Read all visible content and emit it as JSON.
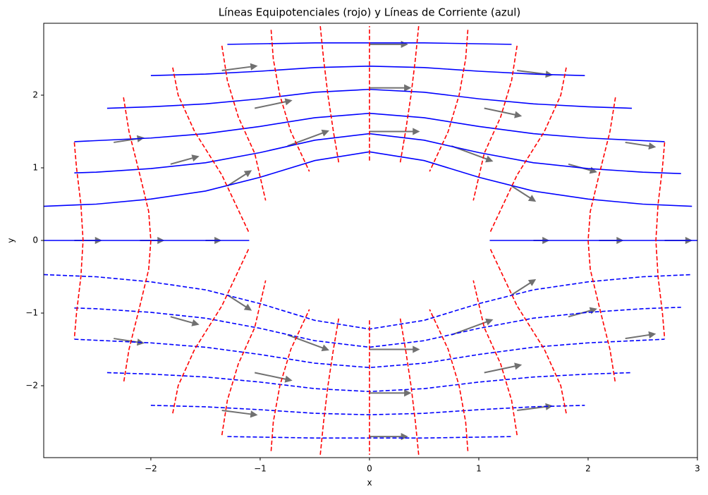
{
  "chart_data": {
    "type": "flow",
    "title": "Líneas Equipotenciales (rojo) y Líneas de Corriente (azul)",
    "x_label": "x",
    "y_label": "y",
    "xlim": [
      -2.98,
      3
    ],
    "ylim": [
      -2.99,
      2.99
    ],
    "xticks": [
      {
        "value": -2,
        "label": "−2"
      },
      {
        "value": -1,
        "label": "−1"
      },
      0,
      1,
      2,
      3
    ],
    "yticks": [
      {
        "value": -2,
        "label": "−2"
      },
      {
        "value": -1,
        "label": "−1"
      },
      0,
      1,
      2
    ],
    "quiver": {
      "color": "#4d4d4d",
      "x": [
        1.5,
        1.3,
        0.75,
        0,
        -0.75,
        -1.3,
        -1.5,
        -1.3,
        -0.75,
        0,
        0.75,
        1.3,
        2.1,
        1.82,
        1.05,
        0,
        -1.05,
        -1.82,
        -2.1,
        -1.82,
        -1.05,
        0,
        1.05,
        1.82,
        2.7,
        2.34,
        1.35,
        0,
        -1.35,
        -2.34,
        -2.7,
        -2.34,
        -1.35,
        0,
        1.35,
        2.34
      ],
      "y": [
        0,
        0.75,
        1.3,
        1.5,
        1.3,
        0.75,
        0,
        -0.75,
        -1.3,
        -1.5,
        -1.3,
        -0.75,
        0,
        1.05,
        1.82,
        2.1,
        1.82,
        1.05,
        0,
        -1.05,
        -1.82,
        -2.1,
        -1.82,
        -1.05,
        0,
        1.35,
        2.34,
        2.7,
        2.34,
        1.35,
        0,
        -1.35,
        -2.34,
        -2.7,
        -2.34,
        -1.35
      ],
      "u": [
        0.46,
        0.73,
        1.27,
        1.54,
        1.27,
        0.73,
        0.46,
        0.73,
        1.27,
        1.54,
        1.27,
        0.73,
        0.73,
        0.86,
        1.14,
        1.27,
        1.14,
        0.86,
        0.73,
        0.86,
        1.14,
        1.27,
        1.14,
        0.86,
        0.83,
        0.92,
        1.08,
        1.17,
        1.08,
        0.92,
        0.83,
        0.92,
        1.08,
        1.17,
        1.08,
        0.92
      ],
      "v": [
        0,
        -0.47,
        -0.47,
        0,
        0.47,
        0.47,
        0,
        -0.47,
        -0.47,
        0,
        0.47,
        0.47,
        0,
        -0.24,
        -0.24,
        0,
        0.24,
        0.24,
        0,
        -0.24,
        -0.24,
        0,
        0.24,
        0.24,
        0,
        -0.14,
        -0.14,
        0,
        0.14,
        0.14,
        0,
        -0.14,
        -0.14,
        0,
        0.14,
        0.14
      ]
    },
    "series": [
      {
        "color": "#0000ff",
        "dash": false,
        "x": [
          -2.98,
          -1.1
        ],
        "y": [
          0,
          0
        ]
      },
      {
        "color": "#0000ff",
        "dash": false,
        "x": [
          1.1,
          3
        ],
        "y": [
          0,
          0
        ]
      },
      {
        "color": "#0000ff",
        "dash": false,
        "x": [
          -2.98,
          -2.5,
          -2,
          -1.5,
          -1,
          -0.5,
          0,
          0.5,
          1,
          1.5,
          2,
          2.5,
          2.95
        ],
        "y": [
          0.47,
          0.5,
          0.57,
          0.68,
          0.87,
          1.1,
          1.22,
          1.1,
          0.87,
          0.68,
          0.57,
          0.5,
          0.47
        ]
      },
      {
        "color": "#0000ff",
        "dash": false,
        "x": [
          -2.7,
          -2.5,
          -2,
          -1.5,
          -1,
          -0.5,
          0,
          0.5,
          1,
          1.5,
          2,
          2.5,
          2.85
        ],
        "y": [
          0.93,
          0.94,
          0.99,
          1.07,
          1.21,
          1.38,
          1.47,
          1.38,
          1.21,
          1.07,
          0.99,
          0.94,
          0.92
        ]
      },
      {
        "color": "#0000ff",
        "dash": false,
        "x": [
          -2.7,
          -2,
          -1.5,
          -1,
          -0.5,
          0,
          0.5,
          1,
          1.5,
          2,
          2.7
        ],
        "y": [
          1.36,
          1.41,
          1.47,
          1.57,
          1.69,
          1.75,
          1.69,
          1.57,
          1.47,
          1.41,
          1.36
        ]
      },
      {
        "color": "#0000ff",
        "dash": false,
        "x": [
          -2.4,
          -2,
          -1.5,
          -1,
          -0.5,
          0,
          0.5,
          1,
          1.5,
          2,
          2.4
        ],
        "y": [
          1.82,
          1.84,
          1.88,
          1.95,
          2.04,
          2.08,
          2.04,
          1.95,
          1.88,
          1.84,
          1.82
        ]
      },
      {
        "color": "#0000ff",
        "dash": false,
        "x": [
          -2,
          -1.5,
          -1,
          -0.5,
          0,
          0.5,
          1,
          1.5,
          1.97
        ],
        "y": [
          2.27,
          2.29,
          2.33,
          2.38,
          2.4,
          2.38,
          2.33,
          2.29,
          2.27
        ]
      },
      {
        "color": "#0000ff",
        "dash": false,
        "x": [
          -1.3,
          -0.5,
          0,
          0.5,
          1.3
        ],
        "y": [
          2.7,
          2.72,
          2.72,
          2.72,
          2.7
        ]
      },
      {
        "color": "#0000ff",
        "dash": true,
        "x": [
          -2.98,
          -2.5,
          -2,
          -1.5,
          -1,
          -0.5,
          0,
          0.5,
          1,
          1.5,
          2,
          2.5,
          2.95
        ],
        "y": [
          -0.47,
          -0.5,
          -0.57,
          -0.68,
          -0.87,
          -1.1,
          -1.22,
          -1.1,
          -0.87,
          -0.68,
          -0.57,
          -0.5,
          -0.47
        ]
      },
      {
        "color": "#0000ff",
        "dash": true,
        "x": [
          -2.7,
          -2.5,
          -2,
          -1.5,
          -1,
          -0.5,
          0,
          0.5,
          1,
          1.5,
          2,
          2.5,
          2.85
        ],
        "y": [
          -0.93,
          -0.94,
          -0.99,
          -1.07,
          -1.21,
          -1.38,
          -1.47,
          -1.38,
          -1.21,
          -1.07,
          -0.99,
          -0.94,
          -0.92
        ]
      },
      {
        "color": "#0000ff",
        "dash": true,
        "x": [
          -2.7,
          -2,
          -1.5,
          -1,
          -0.5,
          0,
          0.5,
          1,
          1.5,
          2,
          2.7
        ],
        "y": [
          -1.36,
          -1.41,
          -1.47,
          -1.57,
          -1.69,
          -1.75,
          -1.69,
          -1.57,
          -1.47,
          -1.41,
          -1.36
        ]
      },
      {
        "color": "#0000ff",
        "dash": true,
        "x": [
          -2.4,
          -2,
          -1.5,
          -1,
          -0.5,
          0,
          0.5,
          1,
          1.5,
          2,
          2.4
        ],
        "y": [
          -1.82,
          -1.84,
          -1.88,
          -1.95,
          -2.04,
          -2.08,
          -2.04,
          -1.95,
          -1.88,
          -1.84,
          -1.82
        ]
      },
      {
        "color": "#0000ff",
        "dash": true,
        "x": [
          -2,
          -1.5,
          -1,
          -0.5,
          0,
          0.5,
          1,
          1.5,
          1.97
        ],
        "y": [
          -2.27,
          -2.29,
          -2.33,
          -2.38,
          -2.4,
          -2.38,
          -2.33,
          -2.29,
          -2.27
        ]
      },
      {
        "color": "#0000ff",
        "dash": true,
        "x": [
          -1.3,
          -0.5,
          0,
          0.5,
          1.3
        ],
        "y": [
          -2.7,
          -2.72,
          -2.72,
          -2.72,
          -2.7
        ]
      },
      {
        "color": "#ff0000",
        "dash": true,
        "x": [
          0,
          0
        ],
        "y": [
          1.1,
          2.95
        ]
      },
      {
        "color": "#ff0000",
        "dash": true,
        "x": [
          0,
          0
        ],
        "y": [
          -1.1,
          -2.95
        ]
      },
      {
        "color": "#ff0000",
        "dash": true,
        "x": [
          0.45,
          0.42,
          0.38,
          0.33,
          0.28
        ],
        "y": [
          2.95,
          2.5,
          2,
          1.5,
          1.06
        ]
      },
      {
        "color": "#ff0000",
        "dash": true,
        "x": [
          -0.45,
          -0.42,
          -0.38,
          -0.33,
          -0.28
        ],
        "y": [
          2.95,
          2.5,
          2,
          1.5,
          1.06
        ]
      },
      {
        "color": "#ff0000",
        "dash": true,
        "x": [
          0.45,
          0.42,
          0.38,
          0.33,
          0.28
        ],
        "y": [
          -2.95,
          -2.5,
          -2,
          -1.5,
          -1.06
        ]
      },
      {
        "color": "#ff0000",
        "dash": true,
        "x": [
          -0.45,
          -0.42,
          -0.38,
          -0.33,
          -0.28
        ],
        "y": [
          -2.95,
          -2.5,
          -2,
          -1.5,
          -1.06
        ]
      },
      {
        "color": "#ff0000",
        "dash": true,
        "x": [
          0.9,
          0.88,
          0.82,
          0.72,
          0.55
        ],
        "y": [
          2.9,
          2.5,
          2,
          1.5,
          0.95
        ]
      },
      {
        "color": "#ff0000",
        "dash": true,
        "x": [
          -0.9,
          -0.88,
          -0.82,
          -0.72,
          -0.55
        ],
        "y": [
          2.9,
          2.5,
          2,
          1.5,
          0.95
        ]
      },
      {
        "color": "#ff0000",
        "dash": true,
        "x": [
          0.9,
          0.88,
          0.82,
          0.72,
          0.55
        ],
        "y": [
          -2.9,
          -2.5,
          -2,
          -1.5,
          -0.95
        ]
      },
      {
        "color": "#ff0000",
        "dash": true,
        "x": [
          -0.9,
          -0.88,
          -0.82,
          -0.72,
          -0.55
        ],
        "y": [
          -2.9,
          -2.5,
          -2,
          -1.5,
          -0.95
        ]
      },
      {
        "color": "#ff0000",
        "dash": true,
        "x": [
          1.35,
          1.3,
          1.2,
          1.05,
          0.95
        ],
        "y": [
          2.68,
          2.2,
          1.7,
          1.2,
          0.55
        ]
      },
      {
        "color": "#ff0000",
        "dash": true,
        "x": [
          -1.35,
          -1.3,
          -1.2,
          -1.05,
          -0.95
        ],
        "y": [
          2.68,
          2.2,
          1.7,
          1.2,
          0.55
        ]
      },
      {
        "color": "#ff0000",
        "dash": true,
        "x": [
          1.35,
          1.3,
          1.2,
          1.05,
          0.95
        ],
        "y": [
          -2.68,
          -2.2,
          -1.7,
          -1.2,
          -0.55
        ]
      },
      {
        "color": "#ff0000",
        "dash": true,
        "x": [
          -1.35,
          -1.3,
          -1.2,
          -1.05,
          -0.95
        ],
        "y": [
          -2.68,
          -2.2,
          -1.7,
          -1.2,
          -0.55
        ]
      },
      {
        "color": "#ff0000",
        "dash": true,
        "x": [
          1.8,
          1.75,
          1.6,
          1.35,
          1.1
        ],
        "y": [
          2.38,
          2,
          1.5,
          0.9,
          0.1
        ]
      },
      {
        "color": "#ff0000",
        "dash": true,
        "x": [
          -1.8,
          -1.75,
          -1.6,
          -1.35,
          -1.1
        ],
        "y": [
          2.38,
          2,
          1.5,
          0.9,
          0.1
        ]
      },
      {
        "color": "#ff0000",
        "dash": true,
        "x": [
          1.8,
          1.75,
          1.6,
          1.35,
          1.1
        ],
        "y": [
          -2.38,
          -2,
          -1.5,
          -0.9,
          -0.1
        ]
      },
      {
        "color": "#ff0000",
        "dash": true,
        "x": [
          -1.8,
          -1.75,
          -1.6,
          -1.35,
          -1.1
        ],
        "y": [
          -2.38,
          -2,
          -1.5,
          -0.9,
          -0.1
        ]
      },
      {
        "color": "#ff0000",
        "dash": true,
        "x": [
          2.25,
          2.2,
          2.1,
          2.02,
          2,
          2.02,
          2.1,
          2.2,
          2.25
        ],
        "y": [
          1.97,
          1.5,
          0.9,
          0.4,
          0,
          -0.4,
          -0.9,
          -1.5,
          -1.97
        ]
      },
      {
        "color": "#ff0000",
        "dash": true,
        "x": [
          -2.25,
          -2.2,
          -2.1,
          -2.02,
          -2,
          -2.02,
          -2.1,
          -2.2,
          -2.25
        ],
        "y": [
          1.97,
          1.5,
          0.9,
          0.4,
          0,
          -0.4,
          -0.9,
          -1.5,
          -1.97
        ]
      },
      {
        "color": "#ff0000",
        "dash": true,
        "x": [
          2.7,
          2.68,
          2.64,
          2.62,
          2.64,
          2.68,
          2.7
        ],
        "y": [
          1.35,
          1,
          0.5,
          0,
          -0.5,
          -1,
          -1.35
        ]
      },
      {
        "color": "#ff0000",
        "dash": true,
        "x": [
          -2.7,
          -2.68,
          -2.64,
          -2.62,
          -2.64,
          -2.68,
          -2.7
        ],
        "y": [
          1.35,
          1,
          0.5,
          0,
          -0.5,
          -1,
          -1.35
        ]
      }
    ]
  }
}
